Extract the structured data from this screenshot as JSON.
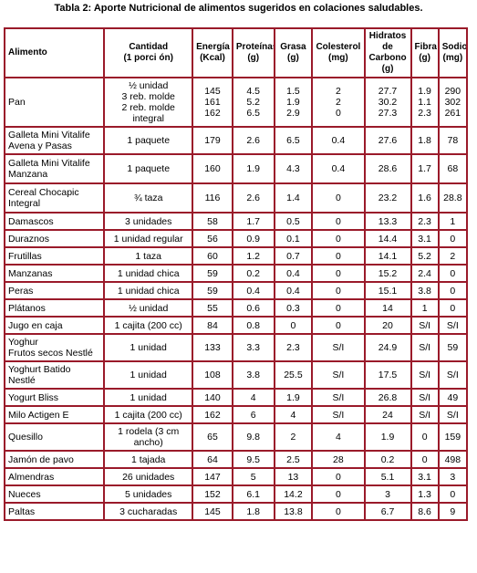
{
  "title": "Tabla 2: Aporte Nutricional de alimentos sugeridos en colaciones saludables.",
  "headers": [
    "Alimento",
    "Cantidad\n(1 porci ón)",
    "Energía\n(Kcal)",
    "Proteínas\n(g)",
    "Grasa\n(g)",
    "Colesterol\n(mg)",
    "Hidratos\nde\nCarbono\n(g)",
    "Fibra\n(g)",
    "Sodio\n(mg)"
  ],
  "rows": [
    {
      "alimento": "Pan",
      "cantidad": "½ unidad\n3 reb. molde\n2 reb. molde\nintegral",
      "energia": "145\n161\n162",
      "proteinas": "4.5\n5.2\n6.5",
      "grasa": "1.5\n1.9\n2.9",
      "colesterol": "2\n2\n0",
      "hidratos": "27.7\n30.2\n27.3",
      "fibra": "1.9\n1.1\n2.3",
      "sodio": "290\n302\n261"
    },
    {
      "alimento": "Galleta Mini Vitalife\nAvena y Pasas",
      "cantidad": "1 paquete",
      "energia": "179",
      "proteinas": "2.6",
      "grasa": "6.5",
      "colesterol": "0.4",
      "hidratos": "27.6",
      "fibra": "1.8",
      "sodio": "78"
    },
    {
      "alimento": " Galleta Mini Vitalife\nManzana",
      "cantidad": "1 paquete",
      "energia": "160",
      "proteinas": "1.9",
      "grasa": "4.3",
      "colesterol": "0.4",
      "hidratos": "28.6",
      "fibra": "1.7",
      "sodio": "68"
    },
    {
      "alimento": "Cereal Chocapic\nIntegral",
      "cantidad": "¾ taza",
      "energia": "116",
      "proteinas": "2.6",
      "grasa": "1.4",
      "colesterol": "0",
      "hidratos": "23.2",
      "fibra": "1.6",
      "sodio": "28.8"
    },
    {
      "alimento": "Damascos",
      "cantidad": "3 unidades",
      "energia": "58",
      "proteinas": "1.7",
      "grasa": "0.5",
      "colesterol": "0",
      "hidratos": "13.3",
      "fibra": "2.3",
      "sodio": "1"
    },
    {
      "alimento": "Duraznos",
      "cantidad": "1 unidad regular",
      "energia": "56",
      "proteinas": "0.9",
      "grasa": "0.1",
      "colesterol": "0",
      "hidratos": "14.4",
      "fibra": "3.1",
      "sodio": "0"
    },
    {
      "alimento": "Frutillas",
      "cantidad": "1 taza",
      "energia": "60",
      "proteinas": "1.2",
      "grasa": "0.7",
      "colesterol": "0",
      "hidratos": "14.1",
      "fibra": "5.2",
      "sodio": "2"
    },
    {
      "alimento": "Manzanas",
      "cantidad": "1 unidad chica",
      "energia": "59",
      "proteinas": "0.2",
      "grasa": "0.4",
      "colesterol": "0",
      "hidratos": "15.2",
      "fibra": "2.4",
      "sodio": "0"
    },
    {
      "alimento": "Peras",
      "cantidad": "1 unidad chica",
      "energia": "59",
      "proteinas": "0.4",
      "grasa": "0.4",
      "colesterol": "0",
      "hidratos": "15.1",
      "fibra": "3.8",
      "sodio": "0"
    },
    {
      "alimento": "Plátanos",
      "cantidad": "½ unidad",
      "energia": "55",
      "proteinas": "0.6",
      "grasa": "0.3",
      "colesterol": "0",
      "hidratos": "14",
      "fibra": "1",
      "sodio": "0"
    },
    {
      "alimento": "Jugo en caja",
      "cantidad": "1 cajita (200 cc)",
      "energia": "84",
      "proteinas": "0.8",
      "grasa": "0",
      "colesterol": "0",
      "hidratos": "20",
      "fibra": "S/I",
      "sodio": "S/I"
    },
    {
      "alimento": "Yoghur\nFrutos secos Nestlé",
      "cantidad": "1 unidad",
      "energia": "133",
      "proteinas": "3.3",
      "grasa": "2.3",
      "colesterol": "S/I",
      "hidratos": "24.9",
      "fibra": "S/I",
      "sodio": "59"
    },
    {
      "alimento": "Yoghurt Batido\nNestlé",
      "cantidad": "1 unidad",
      "energia": "108",
      "proteinas": "3.8",
      "grasa": "25.5",
      "colesterol": "S/I",
      "hidratos": "17.5",
      "fibra": "S/I",
      "sodio": "S/I"
    },
    {
      "alimento": "Yogurt Bliss",
      "cantidad": "1 unidad",
      "energia": "140",
      "proteinas": "4",
      "grasa": "1.9",
      "colesterol": "S/I",
      "hidratos": "26.8",
      "fibra": "S/I",
      "sodio": "49"
    },
    {
      "alimento": "Milo Actigen E",
      "cantidad": "1 cajita (200 cc)",
      "energia": "162",
      "proteinas": "6",
      "grasa": "4",
      "colesterol": "S/I",
      "hidratos": "24",
      "fibra": "S/I",
      "sodio": "S/I"
    },
    {
      "alimento": "Quesillo",
      "cantidad": "1 rodela (3 cm\nancho)",
      "energia": "65",
      "proteinas": "9.8",
      "grasa": "2",
      "colesterol": "4",
      "hidratos": "1.9",
      "fibra": "0",
      "sodio": "159"
    },
    {
      "alimento": "Jamón de pavo",
      "cantidad": "1 tajada",
      "energia": "64",
      "proteinas": "9.5",
      "grasa": "2.5",
      "colesterol": "28",
      "hidratos": "0.2",
      "fibra": "0",
      "sodio": "498"
    },
    {
      "alimento": "Almendras",
      "cantidad": "26 unidades",
      "energia": "147",
      "proteinas": "5",
      "grasa": "13",
      "colesterol": "0",
      "hidratos": "5.1",
      "fibra": "3.1",
      "sodio": "3"
    },
    {
      "alimento": "Nueces",
      "cantidad": "5 unidades",
      "energia": "152",
      "proteinas": "6.1",
      "grasa": "14.2",
      "colesterol": "0",
      "hidratos": "3",
      "fibra": "1.3",
      "sodio": "0"
    },
    {
      "alimento": "Paltas",
      "cantidad": "3 cucharadas",
      "energia": "145",
      "proteinas": "1.8",
      "grasa": "13.8",
      "colesterol": "0",
      "hidratos": "6.7",
      "fibra": "8.6",
      "sodio": "9"
    }
  ]
}
